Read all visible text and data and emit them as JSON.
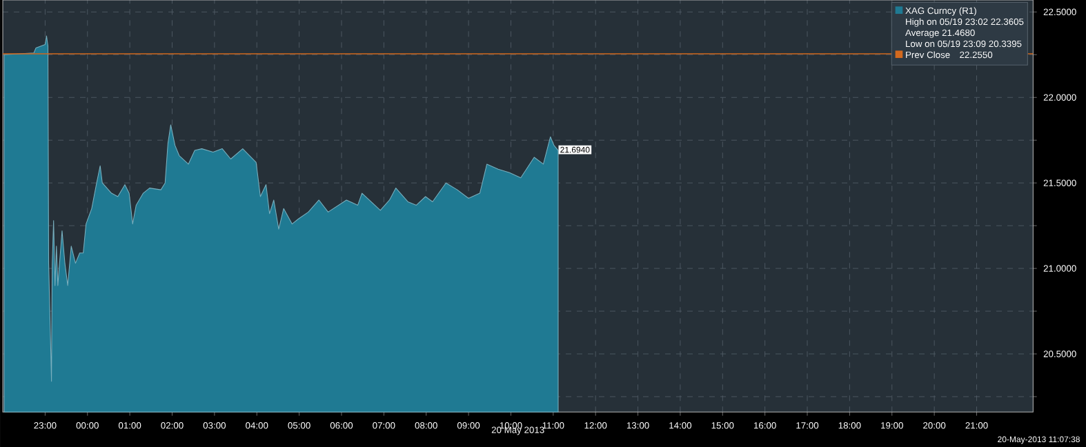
{
  "chart_data": {
    "type": "area",
    "xlabel": "20 May 2013",
    "series": [
      {
        "name": "XAG Curncy (R1)",
        "color": "#1f7a93",
        "x": [
          "2013-05-19T22:02",
          "2013-05-19T22:44",
          "2013-05-19T22:47",
          "2013-05-19T23:00",
          "2013-05-19T23:02",
          "2013-05-19T23:04",
          "2013-05-19T23:05",
          "2013-05-19T23:09",
          "2013-05-19T23:10",
          "2013-05-19T23:12",
          "2013-05-19T23:14",
          "2013-05-19T23:16",
          "2013-05-19T23:18",
          "2013-05-19T23:24",
          "2013-05-19T23:28",
          "2013-05-19T23:32",
          "2013-05-19T23:37",
          "2013-05-19T23:43",
          "2013-05-19T23:49",
          "2013-05-19T23:54",
          "2013-05-19T23:58",
          "2013-05-20T00:06",
          "2013-05-20T00:13",
          "2013-05-20T00:18",
          "2013-05-20T00:21",
          "2013-05-20T00:34",
          "2013-05-20T00:43",
          "2013-05-20T00:53",
          "2013-05-20T00:59",
          "2013-05-20T01:04",
          "2013-05-20T01:09",
          "2013-05-20T01:19",
          "2013-05-20T01:28",
          "2013-05-20T01:44",
          "2013-05-20T01:50",
          "2013-05-20T01:54",
          "2013-05-20T01:58",
          "2013-05-20T02:04",
          "2013-05-20T02:10",
          "2013-05-20T02:23",
          "2013-05-20T02:32",
          "2013-05-20T02:42",
          "2013-05-20T02:58",
          "2013-05-20T03:11",
          "2013-05-20T03:23",
          "2013-05-20T03:40",
          "2013-05-20T03:59",
          "2013-05-20T04:05",
          "2013-05-20T04:13",
          "2013-05-20T04:18",
          "2013-05-20T04:24",
          "2013-05-20T04:31",
          "2013-05-20T04:38",
          "2013-05-20T04:50",
          "2013-05-20T04:59",
          "2013-05-20T05:13",
          "2013-05-20T05:28",
          "2013-05-20T05:41",
          "2013-05-20T06:07",
          "2013-05-20T06:23",
          "2013-05-20T06:29",
          "2013-05-20T06:55",
          "2013-05-20T07:08",
          "2013-05-20T07:17",
          "2013-05-20T07:34",
          "2013-05-20T07:46",
          "2013-05-20T07:59",
          "2013-05-20T08:09",
          "2013-05-20T08:28",
          "2013-05-20T08:44",
          "2013-05-20T09:00",
          "2013-05-20T09:16",
          "2013-05-20T09:26",
          "2013-05-20T09:42",
          "2013-05-20T09:58",
          "2013-05-20T10:14",
          "2013-05-20T10:33",
          "2013-05-20T10:46",
          "2013-05-20T10:56",
          "2013-05-20T11:01",
          "2013-05-20T11:07"
        ],
        "values": [
          22.25,
          22.26,
          22.29,
          22.31,
          22.36,
          22.3,
          21.03,
          20.34,
          21.02,
          21.28,
          20.9,
          21.13,
          20.9,
          21.22,
          21.03,
          20.9,
          21.13,
          21.03,
          21.09,
          21.09,
          21.26,
          21.35,
          21.5,
          21.6,
          21.5,
          21.44,
          21.42,
          21.49,
          21.44,
          21.26,
          21.37,
          21.44,
          21.47,
          21.46,
          21.5,
          21.73,
          21.84,
          21.72,
          21.66,
          21.61,
          21.69,
          21.7,
          21.68,
          21.7,
          21.64,
          21.7,
          21.62,
          21.42,
          21.49,
          21.32,
          21.4,
          21.23,
          21.35,
          21.26,
          21.29,
          21.33,
          21.4,
          21.33,
          21.4,
          21.37,
          21.44,
          21.34,
          21.4,
          21.47,
          21.39,
          21.37,
          21.42,
          21.39,
          21.5,
          21.46,
          21.41,
          21.44,
          21.61,
          21.58,
          21.56,
          21.53,
          21.65,
          21.61,
          21.77,
          21.72,
          21.69
        ]
      }
    ],
    "xlim": [
      "2013-05-19T22:00",
      "2013-05-20T22:20"
    ],
    "xticks": [
      {
        "value": "2013-05-19T23:00",
        "label": "23:00"
      },
      {
        "value": "2013-05-20T00:00",
        "label": "00:00"
      },
      {
        "value": "2013-05-20T01:00",
        "label": "01:00"
      },
      {
        "value": "2013-05-20T02:00",
        "label": "02:00"
      },
      {
        "value": "2013-05-20T03:00",
        "label": "03:00"
      },
      {
        "value": "2013-05-20T04:00",
        "label": "04:00"
      },
      {
        "value": "2013-05-20T05:00",
        "label": "05:00"
      },
      {
        "value": "2013-05-20T06:00",
        "label": "06:00"
      },
      {
        "value": "2013-05-20T07:00",
        "label": "07:00"
      },
      {
        "value": "2013-05-20T08:00",
        "label": "08:00"
      },
      {
        "value": "2013-05-20T09:00",
        "label": "09:00"
      },
      {
        "value": "2013-05-20T10:00",
        "label": "10:00"
      },
      {
        "value": "2013-05-20T11:00",
        "label": "11:00"
      },
      {
        "value": "2013-05-20T12:00",
        "label": "12:00"
      },
      {
        "value": "2013-05-20T13:00",
        "label": "13:00"
      },
      {
        "value": "2013-05-20T14:00",
        "label": "14:00"
      },
      {
        "value": "2013-05-20T15:00",
        "label": "15:00"
      },
      {
        "value": "2013-05-20T16:00",
        "label": "16:00"
      },
      {
        "value": "2013-05-20T17:00",
        "label": "17:00"
      },
      {
        "value": "2013-05-20T18:00",
        "label": "18:00"
      },
      {
        "value": "2013-05-20T19:00",
        "label": "19:00"
      },
      {
        "value": "2013-05-20T20:00",
        "label": "20:00"
      },
      {
        "value": "2013-05-20T21:00",
        "label": "21:00"
      }
    ],
    "ylim": [
      20.16,
      22.57
    ],
    "yticks": [
      {
        "value": 20.25,
        "label": null
      },
      {
        "value": 20.5,
        "label": "20.5000"
      },
      {
        "value": 20.75,
        "label": null
      },
      {
        "value": 21.0,
        "label": "21.0000"
      },
      {
        "value": 21.25,
        "label": null
      },
      {
        "value": 21.5,
        "label": "21.5000"
      },
      {
        "value": 21.75,
        "label": null
      },
      {
        "value": 22.0,
        "label": "22.0000"
      },
      {
        "value": 22.25,
        "label": null
      },
      {
        "value": 22.5,
        "label": "22.5000"
      }
    ],
    "ref_lines": [
      {
        "axis": "y",
        "value": 22.255,
        "label": "Prev Close",
        "color": "#d2691e"
      }
    ],
    "annotations": [
      {
        "text": "21.6940",
        "x": "2013-05-20T11:07",
        "y": 21.694
      },
      "High on 05/19 23:02  22.3605",
      "Average  21.4680",
      "Low on 05/19 23:09  20.3395",
      "22.2550",
      "20-May-2013 11:07:38"
    ],
    "grid": true,
    "legend": "top right"
  }
}
